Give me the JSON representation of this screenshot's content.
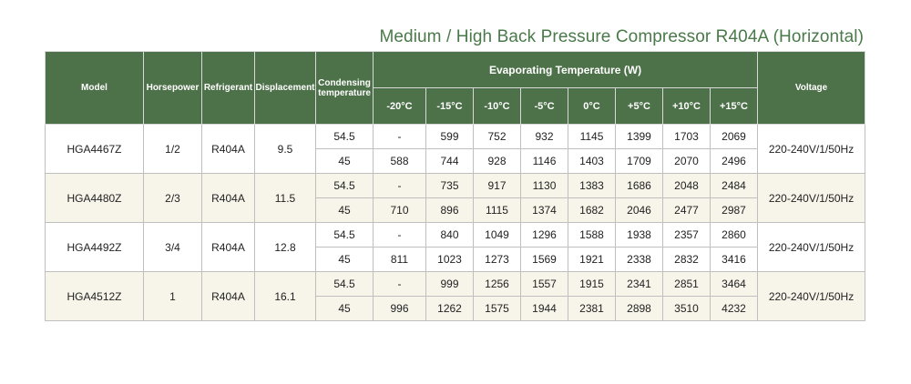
{
  "title": "Medium / High Back Pressure Compressor R404A (Horizontal)",
  "headers": {
    "model": "Model",
    "horsepower": "Horsepower",
    "refrigerant": "Refrigerant",
    "displacement": "Displacement",
    "condensing": "Condensing temperature",
    "evaporating": "Evaporating Temperature (W)",
    "voltage": "Voltage",
    "temps": [
      "-20°C",
      "-15°C",
      "-10°C",
      "-5°C",
      "0°C",
      "+5°C",
      "+10°C",
      "+15°C"
    ]
  },
  "rows": [
    {
      "model": "HGA4467Z",
      "horsepower": "1/2",
      "refrigerant": "R404A",
      "displacement": "9.5",
      "voltage": "220-240V/1/50Hz",
      "lines": [
        {
          "cond": "54.5",
          "vals": [
            "-",
            "599",
            "752",
            "932",
            "1145",
            "1399",
            "1703",
            "2069"
          ]
        },
        {
          "cond": "45",
          "vals": [
            "588",
            "744",
            "928",
            "1146",
            "1403",
            "1709",
            "2070",
            "2496"
          ]
        }
      ]
    },
    {
      "model": "HGA4480Z",
      "horsepower": "2/3",
      "refrigerant": "R404A",
      "displacement": "11.5",
      "voltage": "220-240V/1/50Hz",
      "lines": [
        {
          "cond": "54.5",
          "vals": [
            "-",
            "735",
            "917",
            "1130",
            "1383",
            "1686",
            "2048",
            "2484"
          ]
        },
        {
          "cond": "45",
          "vals": [
            "710",
            "896",
            "1115",
            "1374",
            "1682",
            "2046",
            "2477",
            "2987"
          ]
        }
      ]
    },
    {
      "model": "HGA4492Z",
      "horsepower": "3/4",
      "refrigerant": "R404A",
      "displacement": "12.8",
      "voltage": "220-240V/1/50Hz",
      "lines": [
        {
          "cond": "54.5",
          "vals": [
            "-",
            "840",
            "1049",
            "1296",
            "1588",
            "1938",
            "2357",
            "2860"
          ]
        },
        {
          "cond": "45",
          "vals": [
            "811",
            "1023",
            "1273",
            "1569",
            "1921",
            "2338",
            "2832",
            "3416"
          ]
        }
      ]
    },
    {
      "model": "HGA4512Z",
      "horsepower": "1",
      "refrigerant": "R404A",
      "displacement": "16.1",
      "voltage": "220-240V/1/50Hz",
      "lines": [
        {
          "cond": "54.5",
          "vals": [
            "-",
            "999",
            "1256",
            "1557",
            "1915",
            "2341",
            "2851",
            "3464"
          ]
        },
        {
          "cond": "45",
          "vals": [
            "996",
            "1262",
            "1575",
            "1944",
            "2381",
            "2898",
            "3510",
            "4232"
          ]
        }
      ]
    }
  ]
}
